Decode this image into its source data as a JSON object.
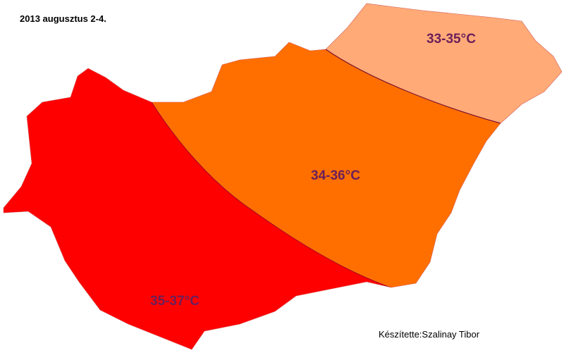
{
  "title": "2013 augusztus 2-4.",
  "regions": [
    {
      "label": "33-35°C"
    },
    {
      "label": "34-36°C"
    },
    {
      "label": "35-37°C"
    }
  ],
  "credit": "Készítette:Szalinay Tibor"
}
